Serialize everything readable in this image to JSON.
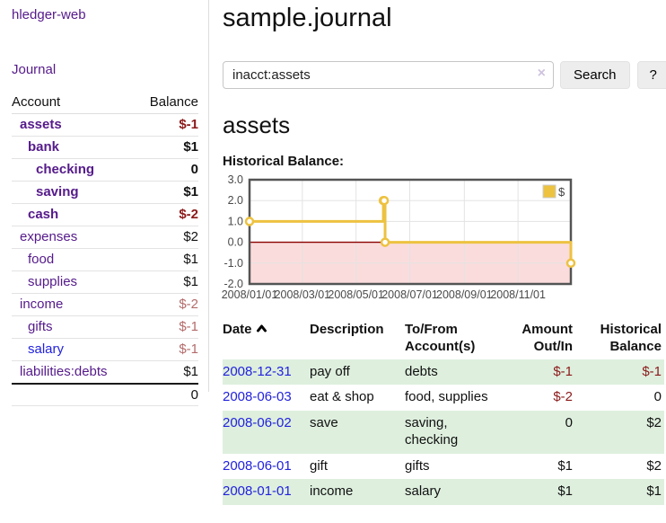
{
  "colors": {
    "purple_link": "#551a8b",
    "blue_link": "#2222dd",
    "negative_dark": "#8b1a1a",
    "negative_soft": "#b36b6b",
    "row_green": "#deefde",
    "series_gold": "#edc240",
    "negative_region": "#fbdcdc",
    "zero_line": "#8b0000",
    "grid_border": "#545454",
    "grid_line": "#e3e3e3"
  },
  "sidebar": {
    "brand": "hledger-web",
    "journal_link": "Journal",
    "accounts": {
      "header_account": "Account",
      "header_balance": "Balance",
      "rows": [
        {
          "account": "assets",
          "depth": 1,
          "bold": true,
          "balance": "$-1",
          "balance_class": "neg-dark"
        },
        {
          "account": "bank",
          "depth": 2,
          "bold": true,
          "balance": "$1",
          "balance_class": ""
        },
        {
          "account": "checking",
          "depth": 3,
          "bold": true,
          "balance": "0",
          "balance_class": ""
        },
        {
          "account": "saving",
          "depth": 3,
          "bold": true,
          "balance": "$1",
          "balance_class": ""
        },
        {
          "account": "cash",
          "depth": 2,
          "bold": true,
          "balance": "$-2",
          "balance_class": "neg-dark"
        },
        {
          "account": "expenses",
          "depth": 1,
          "bold": false,
          "balance": "$2",
          "balance_class": ""
        },
        {
          "account": "food",
          "depth": 2,
          "bold": false,
          "balance": "$1",
          "balance_class": ""
        },
        {
          "account": "supplies",
          "depth": 2,
          "bold": false,
          "balance": "$1",
          "balance_class": ""
        },
        {
          "account": "income",
          "depth": 1,
          "bold": false,
          "balance": "$-2",
          "balance_class": "neg-soft"
        },
        {
          "account": "gifts",
          "depth": 2,
          "bold": false,
          "balance": "$-1",
          "balance_class": "neg-soft"
        },
        {
          "account": "salary",
          "depth": 2,
          "bold": false,
          "balance": "$-1",
          "balance_class": "neg-soft",
          "unvisited": true
        },
        {
          "account": "liabilities:debts",
          "depth": 1,
          "bold": false,
          "balance": "$1",
          "balance_class": ""
        }
      ],
      "total": "0"
    }
  },
  "main": {
    "title": "sample.journal",
    "search": {
      "value": "inacct:assets",
      "clear_icon": "×",
      "button_label": "Search",
      "help_label": "?"
    },
    "account_heading": "assets",
    "chart_label": "Historical Balance:"
  },
  "chart_data": {
    "type": "line",
    "title": "Historical Balance:",
    "step": true,
    "legend_position": "top-right",
    "xlim": [
      "2008-01-01",
      "2008-12-31"
    ],
    "ylim": [
      -2,
      3
    ],
    "series": [
      {
        "name": "$",
        "points": [
          [
            "2008-01-01",
            1
          ],
          [
            "2008-06-01",
            2
          ],
          [
            "2008-06-02",
            2
          ],
          [
            "2008-06-03",
            0
          ],
          [
            "2008-12-31",
            -1
          ]
        ]
      }
    ],
    "x_ticks": [
      {
        "label": "2008/01/01",
        "date": "2008-01-01"
      },
      {
        "label": "2008/03/01",
        "date": "2008-03-01"
      },
      {
        "label": "2008/05/01",
        "date": "2008-05-01"
      },
      {
        "label": "2008/07/01",
        "date": "2008-07-01"
      },
      {
        "label": "2008/09/01",
        "date": "2008-09-01"
      },
      {
        "label": "2008/11/01",
        "date": "2008-11-01"
      }
    ],
    "y_ticks": [
      {
        "label": "3.0",
        "value": 3
      },
      {
        "label": "2.0",
        "value": 2
      },
      {
        "label": "1.0",
        "value": 1
      },
      {
        "label": "0.0",
        "value": 0
      },
      {
        "label": "-1.0",
        "value": -1
      },
      {
        "label": "-2.0",
        "value": -2
      }
    ],
    "negative_region_below": 0
  },
  "register": {
    "headers": {
      "date": "Date",
      "description": "Description",
      "accounts": "To/From Account(s)",
      "amount": "Amount Out/In",
      "balance": "Historical Balance"
    },
    "sort_icon": "chevron-up",
    "rows": [
      {
        "date": "2008-12-31",
        "description": "pay off",
        "accounts": "debts",
        "amount": "$-1",
        "amount_class": "neg-dark",
        "balance": "$-1",
        "balance_class": "neg-dark"
      },
      {
        "date": "2008-06-03",
        "description": "eat & shop",
        "accounts": "food, supplies",
        "amount": "$-2",
        "amount_class": "neg-dark",
        "balance": "0",
        "balance_class": ""
      },
      {
        "date": "2008-06-02",
        "description": "save",
        "accounts": "saving, checking",
        "amount": "0",
        "amount_class": "",
        "balance": "$2",
        "balance_class": ""
      },
      {
        "date": "2008-06-01",
        "description": "gift",
        "accounts": "gifts",
        "amount": "$1",
        "amount_class": "",
        "balance": "$2",
        "balance_class": ""
      },
      {
        "date": "2008-01-01",
        "description": "income",
        "accounts": "salary",
        "amount": "$1",
        "amount_class": "",
        "balance": "$1",
        "balance_class": ""
      }
    ]
  }
}
